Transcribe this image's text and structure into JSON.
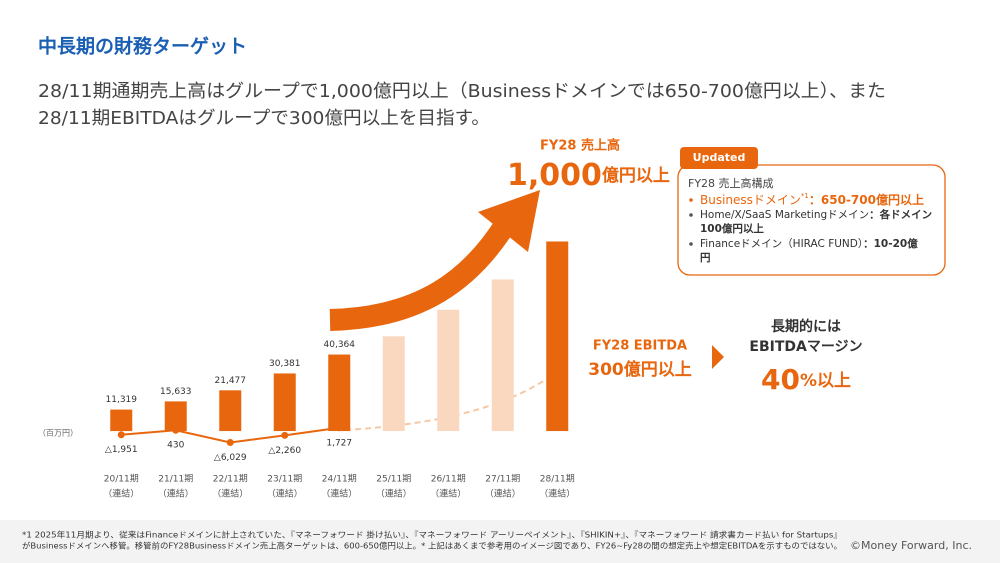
{
  "title": "中長期の財務ターゲット",
  "lead": [
    "28/11期通期売上高はグループで1,000億円以上（Businessドメインでは650-700億円以上）、また",
    "28/11期EBITDAはグループで300億円以上を目指す。"
  ],
  "revenue_target": {
    "label": "FY28 売上高",
    "value": "1,000",
    "unit": "億円以上"
  },
  "updated_box": {
    "tag": "Updated",
    "heading": "FY28 売上高構成",
    "items": [
      {
        "text": "Businessドメイン",
        "note": "*1",
        "value": "：650-700億円以上"
      },
      {
        "text": "Home/X/SaaS Marketingドメイン",
        "value": "：各ドメイン",
        "value_cont": "100億円以上"
      },
      {
        "text": "Financeドメイン（HIRAC FUND）",
        "value": "：10-20億",
        "value_cont": "円"
      }
    ]
  },
  "ebitda_target": {
    "label": "FY28 EBITDA",
    "value": "300億円以上"
  },
  "margin_target": {
    "lines": [
      "長期的には",
      "EBITDAマージン"
    ],
    "value": "40",
    "unit": "%以上"
  },
  "footnote": [
    "*1 2025年11月期より、従来はFinanceドメインに計上されていた、『マネーフォワード 掛け払い』、『マネーフォワード アーリーペイメント』、『SHIKIN+』、『マネーフォワード 請求書カード払い for Startups』",
    "がBusinessドメインへ移管。移管前のFY28Businessドメイン売上高ターゲットは、600-650億円以上。* 上記はあくまで参考用のイメージ図であり、FY26~Fy28の間の想定売上や想定EBITDAを示すものではない。"
  ],
  "copyright": "©Money Forward, Inc.",
  "chart_data": {
    "type": "bar",
    "unit_label": "（百万円）",
    "categories": [
      "20/11期",
      "21/11期",
      "22/11期",
      "23/11期",
      "24/11期",
      "25/11期",
      "26/11期",
      "27/11期",
      "28/11期"
    ],
    "category_sublabels": [
      "（連結）",
      "（連結）",
      "（連結）",
      "（連結）",
      "（連結）",
      "（連結）",
      "（連結）",
      "（連結）",
      "（連結）"
    ],
    "ylim": [
      -10000,
      105000
    ],
    "series": [
      {
        "type": "bar",
        "values": [
          11319,
          15633,
          21477,
          30381,
          40364,
          50000,
          64000,
          80000,
          100000
        ],
        "value_labels": [
          "11,319",
          "15,633",
          "21,477",
          "30,381",
          "40,364",
          null,
          null,
          null,
          null
        ],
        "colors": [
          "#e8660d",
          "#e8660d",
          "#e8660d",
          "#e8660d",
          "#e8660d",
          "#f9d8bf",
          "#f9d8bf",
          "#f9d8bf",
          "#e8660d"
        ]
      },
      {
        "type": "line",
        "color": "#e8660d",
        "values": [
          -1951,
          430,
          -6029,
          -2260,
          1727,
          null,
          null,
          null,
          null
        ],
        "value_labels": [
          "△1,951",
          "430",
          "△6,029",
          "△2,260",
          "1,727",
          null,
          null,
          null,
          null
        ]
      }
    ]
  }
}
